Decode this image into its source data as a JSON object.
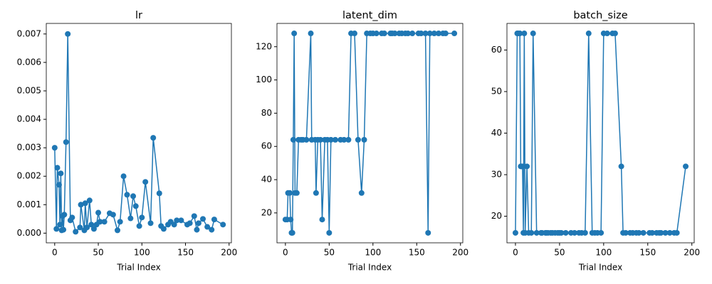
{
  "chart_data": [
    {
      "type": "line",
      "title": "lr",
      "x_label": "Trial Index",
      "color": "#1f77b4",
      "x": [
        0,
        2,
        3,
        5,
        6,
        7,
        8,
        9,
        10,
        11,
        13,
        15,
        18,
        20,
        24,
        29,
        30,
        34,
        35,
        37,
        40,
        42,
        45,
        48,
        50,
        52,
        57,
        63,
        67,
        72,
        75,
        79,
        83,
        87,
        90,
        93,
        97,
        100,
        104,
        110,
        113,
        120,
        122,
        125,
        130,
        133,
        137,
        140,
        145,
        152,
        155,
        160,
        163,
        165,
        170,
        175,
        180,
        183,
        193
      ],
      "values": [
        0.003,
        0.00015,
        0.0023,
        0.0017,
        0.0003,
        0.0021,
        0.0001,
        0.0006,
        0.00012,
        0.00065,
        0.0032,
        0.007,
        0.00045,
        0.00055,
        5e-05,
        0.0002,
        0.001,
        0.0001,
        0.00105,
        0.0002,
        0.00115,
        0.0003,
        0.00015,
        0.0003,
        0.00072,
        0.0004,
        0.0004,
        0.0007,
        0.00065,
        0.0001,
        0.0004,
        0.002,
        0.00135,
        0.00052,
        0.0013,
        0.00095,
        0.00025,
        0.00055,
        0.0018,
        0.00035,
        0.00335,
        0.0014,
        0.00025,
        0.00015,
        0.0003,
        0.0004,
        0.0003,
        0.00045,
        0.00045,
        0.0003,
        0.00035,
        0.0006,
        0.00012,
        0.00035,
        0.0005,
        0.00022,
        0.00012,
        0.00048,
        0.0003
      ],
      "xlim": [
        -9.65,
        202.65
      ],
      "xticks": [
        0,
        50,
        100,
        150,
        200
      ],
      "ylim": [
        -0.00034,
        0.00737
      ],
      "yticks": [
        {
          "value": 0,
          "label": "0.000"
        },
        {
          "value": 0.001,
          "label": "0.001"
        },
        {
          "value": 0.002,
          "label": "0.002"
        },
        {
          "value": 0.003,
          "label": "0.003"
        },
        {
          "value": 0.004,
          "label": "0.004"
        },
        {
          "value": 0.005,
          "label": "0.005"
        },
        {
          "value": 0.006,
          "label": "0.006"
        },
        {
          "value": 0.007,
          "label": "0.007"
        }
      ]
    },
    {
      "type": "line",
      "title": "latent_dim",
      "x_label": "Trial Index",
      "color": "#1f77b4",
      "x": [
        0,
        2,
        3,
        5,
        6,
        7,
        8,
        9,
        10,
        11,
        13,
        15,
        18,
        20,
        24,
        29,
        30,
        34,
        35,
        37,
        40,
        42,
        45,
        48,
        50,
        52,
        57,
        63,
        67,
        72,
        75,
        79,
        83,
        87,
        90,
        93,
        97,
        100,
        104,
        110,
        113,
        120,
        122,
        125,
        130,
        133,
        137,
        140,
        145,
        152,
        155,
        160,
        163,
        165,
        170,
        175,
        180,
        183,
        193
      ],
      "values": [
        16,
        16,
        32,
        32,
        16,
        8,
        8,
        64,
        128,
        32,
        32,
        64,
        64,
        64,
        64,
        128,
        64,
        64,
        32,
        64,
        64,
        16,
        64,
        64,
        8,
        64,
        64,
        64,
        64,
        64,
        128,
        128,
        64,
        32,
        64,
        128,
        128,
        128,
        128,
        128,
        128,
        128,
        128,
        128,
        128,
        128,
        128,
        128,
        128,
        128,
        128,
        128,
        8,
        128,
        128,
        128,
        128,
        128,
        128
      ],
      "xlim": [
        -9.65,
        202.65
      ],
      "xticks": [
        0,
        50,
        100,
        150,
        200
      ],
      "ylim": [
        2,
        134
      ],
      "yticks": [
        20,
        40,
        60,
        80,
        100,
        120
      ]
    },
    {
      "type": "line",
      "title": "batch_size",
      "x_label": "Trial Index",
      "color": "#1f77b4",
      "x": [
        0,
        2,
        3,
        5,
        6,
        7,
        8,
        9,
        10,
        11,
        13,
        15,
        18,
        20,
        24,
        29,
        30,
        34,
        35,
        37,
        40,
        42,
        45,
        48,
        50,
        52,
        57,
        63,
        67,
        72,
        75,
        79,
        83,
        87,
        90,
        93,
        97,
        100,
        104,
        110,
        113,
        120,
        122,
        125,
        130,
        133,
        137,
        140,
        145,
        152,
        155,
        160,
        163,
        165,
        170,
        175,
        180,
        183,
        193
      ],
      "values": [
        16,
        64,
        64,
        64,
        32,
        32,
        32,
        16,
        64,
        16,
        32,
        16,
        16,
        64,
        16,
        16,
        16,
        16,
        16,
        16,
        16,
        16,
        16,
        16,
        16,
        16,
        16,
        16,
        16,
        16,
        16,
        16,
        64,
        16,
        16,
        16,
        16,
        64,
        64,
        64,
        64,
        32,
        16,
        16,
        16,
        16,
        16,
        16,
        16,
        16,
        16,
        16,
        16,
        16,
        16,
        16,
        16,
        16,
        32
      ],
      "xlim": [
        -9.65,
        202.65
      ],
      "xticks": [
        0,
        50,
        100,
        150,
        200
      ],
      "ylim": [
        13.6,
        66.4
      ],
      "yticks": [
        20,
        30,
        40,
        50,
        60
      ]
    }
  ]
}
